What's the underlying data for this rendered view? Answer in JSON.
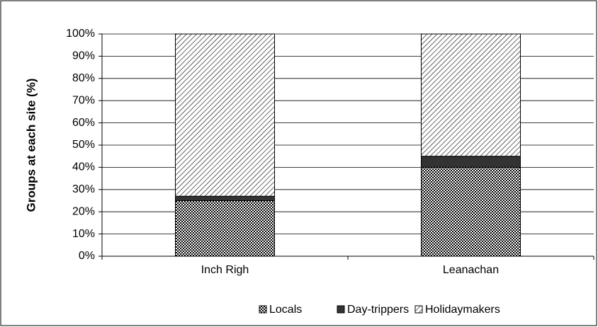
{
  "chart_data": {
    "type": "stacked_bar",
    "ylabel": "Groups at each site (%)",
    "categories": [
      "Inch Righ",
      "Leanachan"
    ],
    "series": [
      {
        "name": "Locals",
        "color": "#000000",
        "pattern": "checker",
        "values": [
          25,
          40
        ]
      },
      {
        "name": "Day-trippers",
        "color": "#333333",
        "pattern": "solid",
        "values": [
          2,
          5
        ]
      },
      {
        "name": "Holidaymakers",
        "color": "#000000",
        "pattern": "hatch",
        "values": [
          73,
          55
        ]
      }
    ],
    "ylim": [
      0,
      100
    ],
    "yticks": [
      {
        "value": 0,
        "label": "0%"
      },
      {
        "value": 10,
        "label": "10%"
      },
      {
        "value": 20,
        "label": "20%"
      },
      {
        "value": 30,
        "label": "30%"
      },
      {
        "value": 40,
        "label": "40%"
      },
      {
        "value": 50,
        "label": "50%"
      },
      {
        "value": 60,
        "label": "60%"
      },
      {
        "value": 70,
        "label": "70%"
      },
      {
        "value": 80,
        "label": "80%"
      },
      {
        "value": 90,
        "label": "90%"
      },
      {
        "value": 100,
        "label": "100%"
      }
    ],
    "grid": true,
    "legend": "bottom"
  }
}
